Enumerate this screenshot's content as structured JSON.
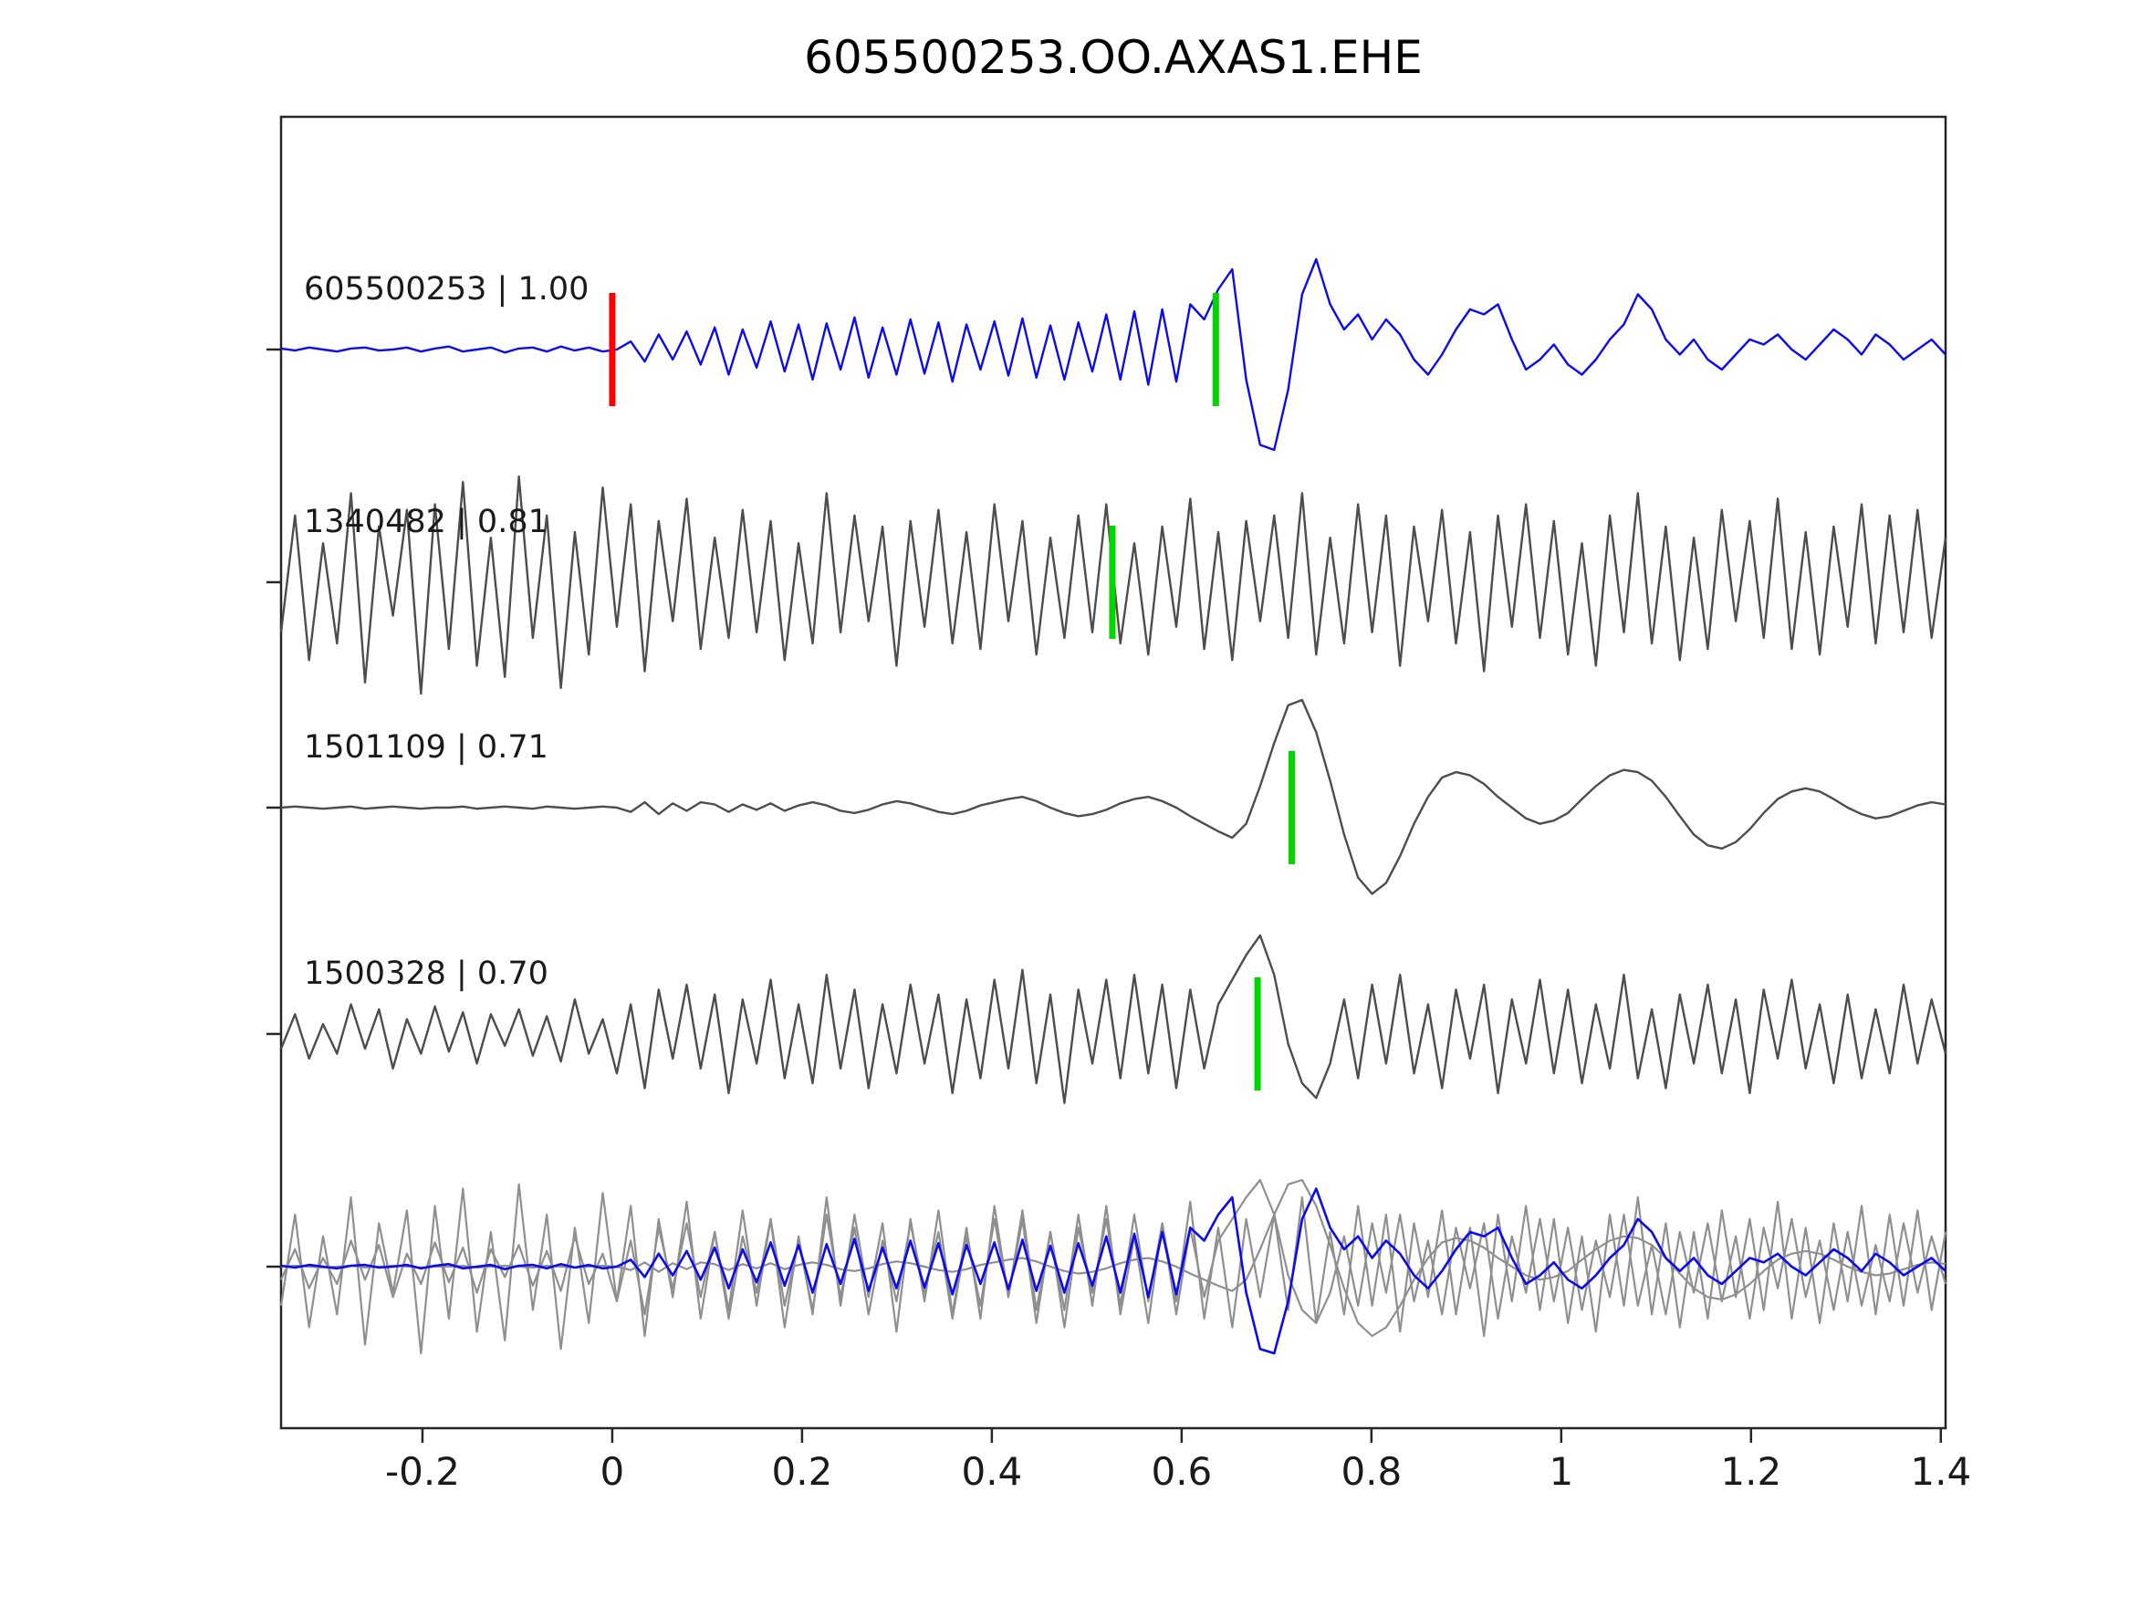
{
  "chart_data": {
    "type": "line",
    "title": "605500253.OO.AXAS1.EHE",
    "xlabel": "",
    "ylabel": "",
    "x_range": [
      -0.349,
      1.405
    ],
    "x_ticks": [
      -0.2,
      0,
      0.2,
      0.4,
      0.6,
      0.8,
      1,
      1.2,
      1.4
    ],
    "x_tick_labels": [
      "-0.2",
      "0",
      "0.2",
      "0.4",
      "0.6",
      "0.8",
      "1",
      "1.2",
      "1.4"
    ],
    "grid": false,
    "legend": "none",
    "colors": {
      "target": "#0b0bee",
      "match": "#4d4d4d",
      "overlay_gray": "#8f8f8f",
      "pick_green": "#00d500",
      "pick_red": "#ff0000",
      "axis": "#262626",
      "label_text": "#1a1a1a"
    },
    "traces": [
      {
        "id": "605500253",
        "label": "605500253 | 1.00",
        "similarity": 1.0,
        "color_role": "target",
        "picks": [
          {
            "x": 0.0,
            "color": "pick_red"
          },
          {
            "x": 0.636,
            "color": "pick_green"
          }
        ],
        "samples": [
          0.01,
          -0.01,
          0.02,
          0.0,
          -0.02,
          0.01,
          0.02,
          -0.01,
          0.0,
          0.02,
          -0.02,
          0.01,
          0.03,
          -0.02,
          0.0,
          0.02,
          -0.03,
          0.01,
          0.02,
          -0.02,
          0.03,
          -0.01,
          0.02,
          -0.02,
          0.0,
          0.08,
          -0.12,
          0.15,
          -0.1,
          0.18,
          -0.15,
          0.22,
          -0.25,
          0.2,
          -0.18,
          0.28,
          -0.22,
          0.25,
          -0.3,
          0.26,
          -0.2,
          0.32,
          -0.28,
          0.22,
          -0.25,
          0.3,
          -0.24,
          0.27,
          -0.32,
          0.25,
          -0.2,
          0.28,
          -0.26,
          0.31,
          -0.28,
          0.24,
          -0.3,
          0.27,
          -0.22,
          0.35,
          -0.3,
          0.38,
          -0.35,
          0.4,
          -0.32,
          0.45,
          0.3,
          0.6,
          0.8,
          -0.3,
          -0.95,
          -1.0,
          -0.4,
          0.55,
          0.9,
          0.45,
          0.2,
          0.35,
          0.1,
          0.3,
          0.15,
          -0.1,
          -0.25,
          -0.05,
          0.2,
          0.4,
          0.35,
          0.45,
          0.1,
          -0.2,
          -0.1,
          0.05,
          -0.15,
          -0.25,
          -0.1,
          0.1,
          0.25,
          0.55,
          0.4,
          0.1,
          -0.05,
          0.1,
          -0.1,
          -0.2,
          -0.05,
          0.1,
          0.05,
          0.15,
          0.0,
          -0.1,
          0.05,
          0.2,
          0.1,
          -0.05,
          0.15,
          0.05,
          -0.1,
          0.0,
          0.1,
          -0.05
        ]
      },
      {
        "id": "1340482",
        "label": "1340482 | 0.81",
        "similarity": 0.81,
        "color_role": "match",
        "picks": [
          {
            "x": 0.527,
            "color": "pick_green"
          }
        ],
        "samples": [
          -0.45,
          0.6,
          -0.7,
          0.35,
          -0.55,
          0.8,
          -0.9,
          0.5,
          -0.3,
          0.65,
          -1.0,
          0.7,
          -0.6,
          0.9,
          -0.75,
          0.4,
          -0.85,
          0.95,
          -0.5,
          0.6,
          -0.95,
          0.45,
          -0.65,
          0.85,
          -0.4,
          0.7,
          -0.8,
          0.55,
          -0.35,
          0.75,
          -0.6,
          0.4,
          -0.5,
          0.65,
          -0.45,
          0.55,
          -0.7,
          0.35,
          -0.55,
          0.8,
          -0.45,
          0.6,
          -0.35,
          0.5,
          -0.75,
          0.55,
          -0.4,
          0.65,
          -0.55,
          0.45,
          -0.6,
          0.7,
          -0.35,
          0.55,
          -0.65,
          0.4,
          -0.5,
          0.6,
          -0.45,
          0.7,
          -0.55,
          0.35,
          -0.65,
          0.5,
          -0.4,
          0.75,
          -0.6,
          0.45,
          -0.7,
          0.55,
          -0.35,
          0.6,
          -0.5,
          0.8,
          -0.65,
          0.4,
          -0.55,
          0.7,
          -0.45,
          0.6,
          -0.75,
          0.5,
          -0.35,
          0.65,
          -0.55,
          0.45,
          -0.8,
          0.6,
          -0.4,
          0.7,
          -0.5,
          0.55,
          -0.65,
          0.35,
          -0.75,
          0.6,
          -0.45,
          0.8,
          -0.55,
          0.5,
          -0.7,
          0.4,
          -0.6,
          0.65,
          -0.35,
          0.55,
          -0.5,
          0.75,
          -0.6,
          0.45,
          -0.65,
          0.5,
          -0.4,
          0.7,
          -0.55,
          0.6,
          -0.45,
          0.65,
          -0.5,
          0.4
        ]
      },
      {
        "id": "1501109",
        "label": "1501109 | 0.71",
        "similarity": 0.71,
        "color_role": "match",
        "picks": [
          {
            "x": 0.716,
            "color": "pick_green"
          }
        ],
        "samples": [
          0.0,
          0.01,
          0.0,
          -0.01,
          0.0,
          0.01,
          -0.01,
          0.0,
          0.01,
          0.0,
          -0.01,
          0.0,
          0.0,
          0.01,
          -0.01,
          0.0,
          0.01,
          0.0,
          -0.01,
          0.01,
          0.0,
          -0.01,
          0.0,
          0.01,
          0.0,
          -0.04,
          0.05,
          -0.06,
          0.04,
          -0.03,
          0.05,
          0.03,
          -0.04,
          0.03,
          -0.02,
          0.04,
          -0.03,
          0.02,
          0.05,
          0.02,
          -0.03,
          -0.05,
          -0.02,
          0.03,
          0.06,
          0.04,
          0.0,
          -0.04,
          -0.06,
          -0.03,
          0.02,
          0.05,
          0.08,
          0.1,
          0.06,
          0.0,
          -0.05,
          -0.08,
          -0.06,
          -0.02,
          0.04,
          0.08,
          0.1,
          0.06,
          0.0,
          -0.08,
          -0.15,
          -0.22,
          -0.28,
          -0.15,
          0.2,
          0.6,
          0.95,
          1.0,
          0.7,
          0.25,
          -0.25,
          -0.65,
          -0.8,
          -0.7,
          -0.45,
          -0.15,
          0.1,
          0.28,
          0.33,
          0.3,
          0.22,
          0.1,
          0.0,
          -0.1,
          -0.15,
          -0.12,
          -0.05,
          0.08,
          0.2,
          0.3,
          0.35,
          0.33,
          0.25,
          0.1,
          -0.08,
          -0.25,
          -0.35,
          -0.38,
          -0.32,
          -0.2,
          -0.05,
          0.08,
          0.15,
          0.18,
          0.15,
          0.08,
          0.0,
          -0.06,
          -0.1,
          -0.08,
          -0.03,
          0.02,
          0.05,
          0.03
        ]
      },
      {
        "id": "1500328",
        "label": "1500328 | 0.70",
        "similarity": 0.7,
        "color_role": "match",
        "picks": [
          {
            "x": 0.68,
            "color": "pick_green"
          }
        ],
        "samples": [
          -0.15,
          0.2,
          -0.25,
          0.1,
          -0.2,
          0.3,
          -0.15,
          0.25,
          -0.35,
          0.15,
          -0.2,
          0.28,
          -0.18,
          0.22,
          -0.3,
          0.2,
          -0.12,
          0.25,
          -0.22,
          0.18,
          -0.28,
          0.35,
          -0.2,
          0.15,
          -0.4,
          0.3,
          -0.55,
          0.45,
          -0.25,
          0.5,
          -0.35,
          0.4,
          -0.6,
          0.35,
          -0.3,
          0.55,
          -0.45,
          0.3,
          -0.5,
          0.6,
          -0.35,
          0.45,
          -0.55,
          0.3,
          -0.4,
          0.5,
          -0.3,
          0.4,
          -0.6,
          0.35,
          -0.45,
          0.55,
          -0.35,
          0.65,
          -0.5,
          0.4,
          -0.7,
          0.45,
          -0.3,
          0.55,
          -0.45,
          0.6,
          -0.4,
          0.5,
          -0.55,
          0.45,
          -0.35,
          0.3,
          0.55,
          0.8,
          1.0,
          0.6,
          -0.1,
          -0.5,
          -0.65,
          -0.3,
          0.35,
          -0.45,
          0.5,
          -0.3,
          0.6,
          -0.4,
          0.3,
          -0.55,
          0.45,
          -0.25,
          0.5,
          -0.6,
          0.35,
          -0.3,
          0.55,
          -0.4,
          0.45,
          -0.5,
          0.3,
          -0.35,
          0.6,
          -0.45,
          0.25,
          -0.55,
          0.4,
          -0.3,
          0.5,
          -0.4,
          0.35,
          -0.6,
          0.45,
          -0.25,
          0.55,
          -0.35,
          0.3,
          -0.5,
          0.4,
          -0.45,
          0.25,
          -0.4,
          0.5,
          -0.3,
          0.35,
          -0.2
        ]
      }
    ],
    "overlay": {
      "description": "all traces overlaid on bottom row",
      "gray_traces": [
        1,
        2,
        3
      ],
      "blue_trace": 0
    }
  }
}
